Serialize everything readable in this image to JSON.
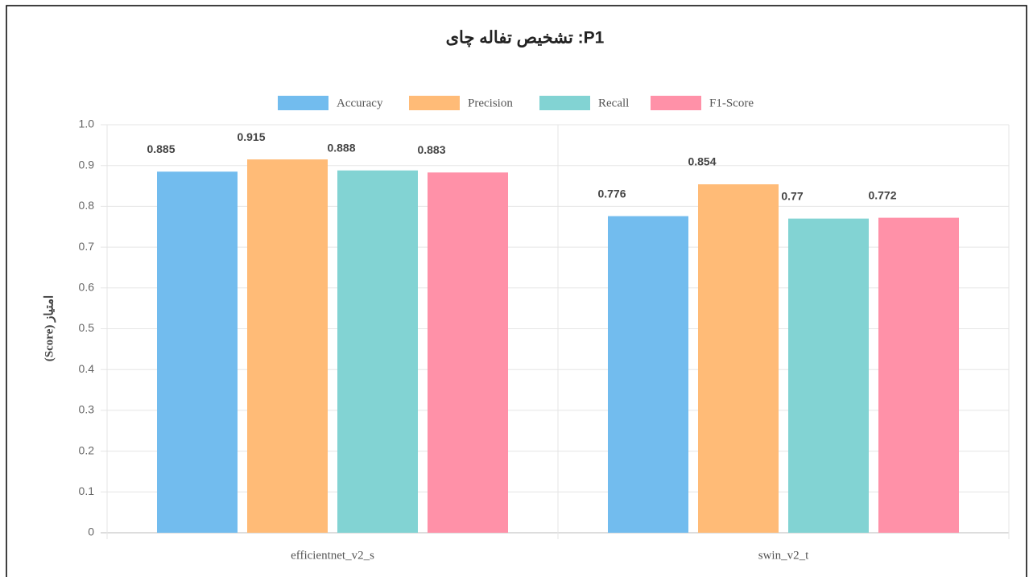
{
  "chart_data": {
    "type": "bar",
    "title": "P1: تشخیص تفاله چای",
    "y_label": "(Score) امتیاز",
    "categories": [
      "efficientnet_v2_s",
      "swin_v2_t"
    ],
    "series": [
      {
        "name": "Accuracy",
        "color": "#72bcee",
        "values": [
          0.885,
          0.776
        ]
      },
      {
        "name": "Precision",
        "color": "#ffbb77",
        "values": [
          0.915,
          0.854
        ]
      },
      {
        "name": "Recall",
        "color": "#82d3d3",
        "values": [
          0.888,
          0.77
        ]
      },
      {
        "name": "F1-Score",
        "color": "#ff91a8",
        "values": [
          0.883,
          0.772
        ]
      }
    ],
    "ylim": [
      0,
      1
    ],
    "yticks": [
      0,
      0.1,
      0.2,
      0.3,
      0.4,
      0.5,
      0.6,
      0.7,
      0.8,
      0.9,
      {
        "value": 1,
        "label": "1.0"
      }
    ],
    "grid": true,
    "legend": "top"
  }
}
